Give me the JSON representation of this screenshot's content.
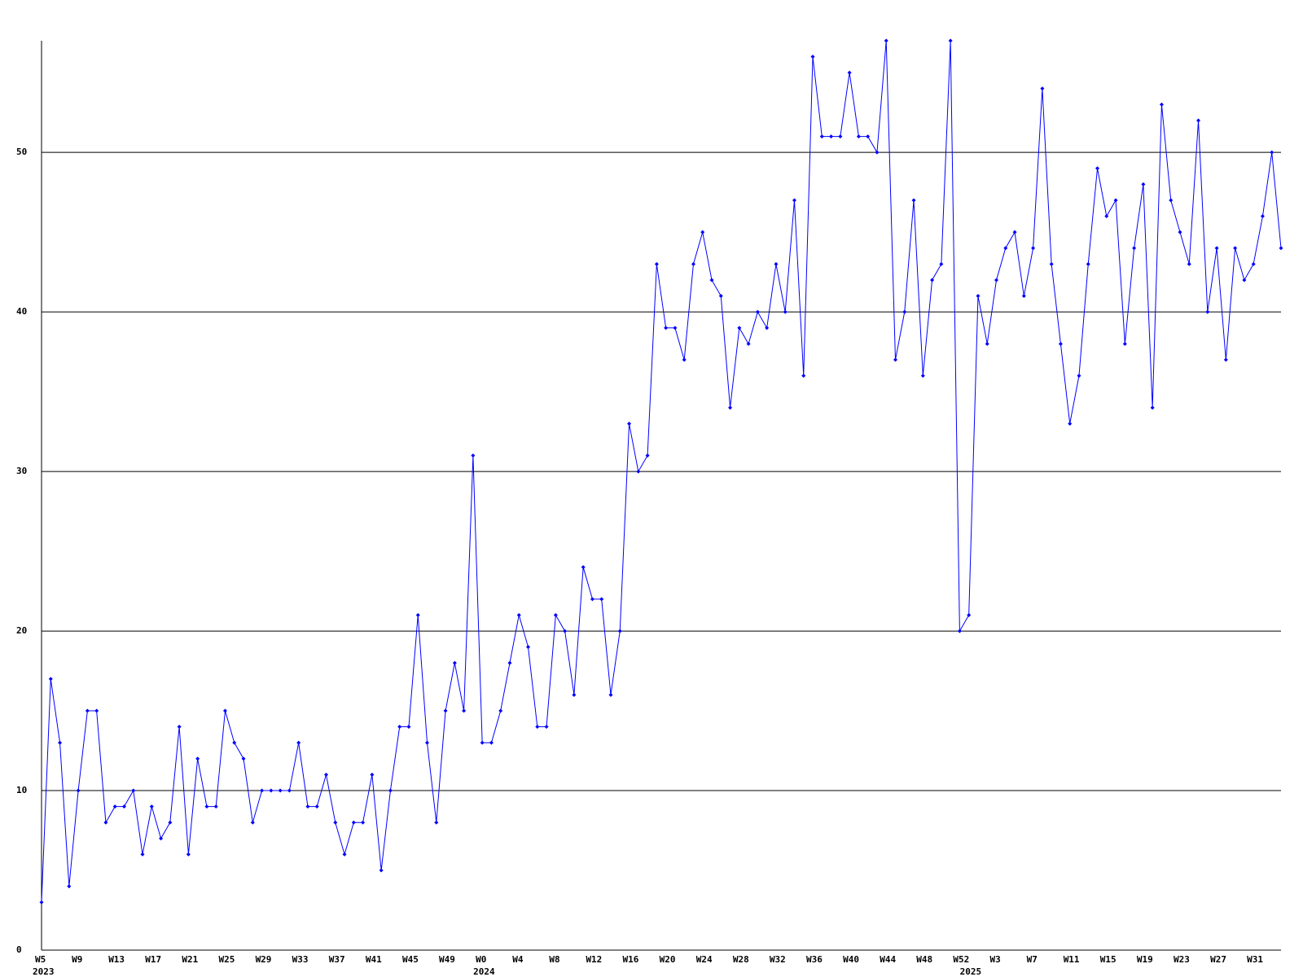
{
  "chart_data": {
    "type": "line",
    "categories": [
      "W5",
      null,
      null,
      null,
      "W9",
      null,
      null,
      null,
      "W13",
      null,
      null,
      null,
      "W17",
      null,
      null,
      null,
      "W21",
      null,
      null,
      null,
      "W25",
      null,
      null,
      null,
      "W29",
      null,
      null,
      null,
      "W33",
      null,
      null,
      null,
      "W37",
      null,
      null,
      null,
      "W41",
      null,
      null,
      null,
      "W45",
      null,
      null,
      null,
      "W49",
      null,
      null,
      null,
      "W0",
      null,
      null,
      null,
      "W4",
      null,
      null,
      null,
      "W8",
      null,
      null,
      null,
      "W12",
      null,
      null,
      null,
      "W16",
      null,
      null,
      null,
      "W20",
      null,
      null,
      null,
      "W24",
      null,
      null,
      null,
      "W28",
      null,
      null,
      null,
      "W32",
      null,
      null,
      null,
      "W36",
      null,
      null,
      null,
      "W40",
      null,
      null,
      null,
      "W44",
      null,
      null,
      null,
      "W48",
      null,
      null,
      null,
      "W52",
      null,
      null,
      null,
      "W3",
      null,
      null,
      null,
      "W7",
      null,
      null,
      null,
      "W11",
      null,
      null,
      null,
      "W15",
      null,
      null,
      null,
      "W19",
      null,
      null,
      null,
      "W23",
      null,
      null,
      null,
      "W27",
      null,
      null,
      null,
      "W31",
      null,
      null,
      null
    ],
    "year_categories": [
      "2023",
      null,
      null,
      null,
      null,
      null,
      null,
      null,
      null,
      null,
      null,
      null,
      null,
      null,
      null,
      null,
      null,
      null,
      null,
      null,
      null,
      null,
      null,
      null,
      null,
      null,
      null,
      null,
      null,
      null,
      null,
      null,
      null,
      null,
      null,
      null,
      null,
      null,
      null,
      null,
      null,
      null,
      null,
      null,
      null,
      null,
      null,
      null,
      "2024",
      null,
      null,
      null,
      null,
      null,
      null,
      null,
      null,
      null,
      null,
      null,
      null,
      null,
      null,
      null,
      null,
      null,
      null,
      null,
      null,
      null,
      null,
      null,
      null,
      null,
      null,
      null,
      null,
      null,
      null,
      null,
      null,
      null,
      null,
      null,
      null,
      null,
      null,
      null,
      null,
      null,
      null,
      null,
      null,
      null,
      null,
      null,
      null,
      null,
      null,
      null,
      null,
      "2025",
      null,
      null,
      null,
      null,
      null,
      null,
      null,
      null,
      null,
      null,
      null,
      null,
      null,
      null,
      null,
      null,
      null,
      null,
      null,
      null,
      null,
      null,
      null,
      null,
      null,
      null,
      null,
      null,
      null,
      null,
      null,
      null,
      null,
      null
    ],
    "series": [
      {
        "color": "#0000ff",
        "values": [
          3,
          17,
          13,
          4,
          10,
          15,
          15,
          8,
          9,
          9,
          10,
          6,
          9,
          7,
          8,
          14,
          6,
          12,
          9,
          9,
          15,
          13,
          12,
          8,
          10,
          10,
          10,
          10,
          13,
          9,
          9,
          11,
          8,
          6,
          8,
          8,
          11,
          5,
          10,
          14,
          14,
          21,
          13,
          8,
          15,
          18,
          15,
          31,
          13,
          13,
          15,
          18,
          21,
          19,
          14,
          14,
          21,
          20,
          16,
          24,
          22,
          22,
          16,
          20,
          33,
          30,
          31,
          43,
          39,
          39,
          37,
          43,
          45,
          42,
          41,
          34,
          39,
          38,
          40,
          39,
          43,
          40,
          47,
          36,
          56,
          51,
          51,
          51,
          55,
          51,
          51,
          50,
          57,
          37,
          40,
          47,
          36,
          42,
          43,
          57,
          20,
          21,
          41,
          38,
          42,
          44,
          45,
          41,
          44,
          54,
          43,
          38,
          33,
          36,
          43,
          49,
          46,
          47,
          38,
          44,
          48,
          34,
          53,
          47,
          45,
          43,
          52,
          40,
          44,
          37,
          44,
          42,
          43,
          46,
          50,
          44
        ]
      }
    ],
    "ylim": [
      0,
      57
    ],
    "yticks": [
      0,
      10,
      20,
      30,
      40,
      50
    ],
    "grid": true
  }
}
